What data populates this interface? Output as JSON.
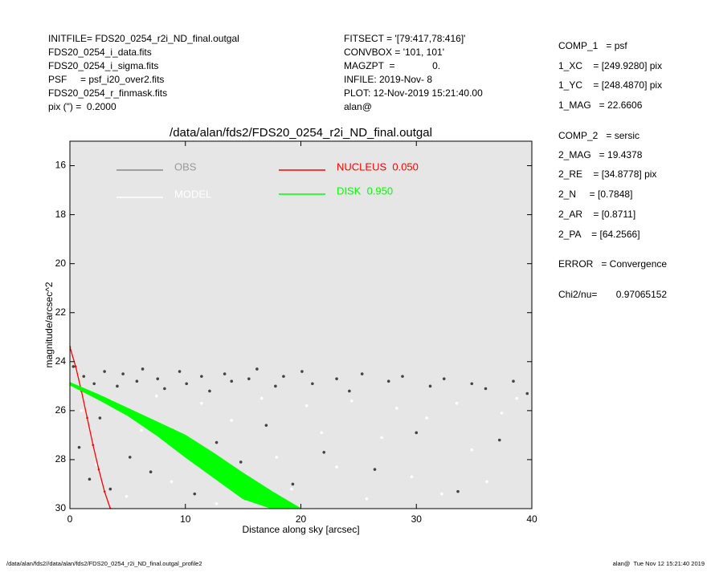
{
  "header_left": [
    "INITFILE= FDS20_0254_r2i_ND_final.outgal",
    "FDS20_0254_i_data.fits",
    "FDS20_0254_i_sigma.fits",
    "PSF     = psf_i20_over2.fits",
    "FDS20_0254_r_finmask.fits",
    "pix (\") =  0.2000"
  ],
  "header_mid": [
    "FITSECT = '[79:417,78:416]'",
    "CONVBOX = '101, 101'",
    "MAGZPT  =              0.",
    "INFILE: 2019-Nov- 8",
    "PLOT: 12-Nov-2019 15:21:40.00",
    "alan@"
  ],
  "params": [
    "COMP_1   = psf",
    "1_XC    = [249.9280] pix",
    "1_YC    = [248.4870] pix",
    "1_MAG   = 22.6606",
    "COMP_2   = sersic",
    "2_MAG   = 19.4378",
    "2_RE    = [34.8778] pix",
    "2_N     = [0.7848]",
    "2_AR    = [0.8711]",
    "2_PA    = [64.2566]",
    "ERROR   = Convergence",
    "Chi2/nu=       0.97065152"
  ],
  "footer_left": "/data/alan/fds2//data/alan/fds2/FDS20_0254_r2i_ND_final.outgal_profile2",
  "footer_right": "alan@  Tue Nov 12 15:21:40 2019",
  "chart_data": {
    "type": "scatter",
    "title": "/data/alan/fds2/FDS20_0254_r2i_ND_final.outgal",
    "xlabel": "Distance along sky [arcsec]",
    "ylabel": "magnitude/arcsec^2",
    "xlim": [
      0,
      40
    ],
    "ylim": [
      30,
      15
    ],
    "xticks": [
      0,
      10,
      20,
      30,
      40
    ],
    "yticks": [
      16,
      18,
      20,
      22,
      24,
      26,
      28,
      30
    ],
    "background": "#e6e6e6",
    "series": [
      {
        "name": "OBS",
        "color": "#444444",
        "kind": "points",
        "x": [
          0.3,
          0.8,
          1.2,
          1.7,
          2.1,
          2.6,
          3.0,
          3.5,
          4.1,
          4.6,
          5.2,
          5.8,
          6.3,
          7.0,
          7.6,
          8.2,
          8.9,
          9.5,
          10.1,
          10.8,
          11.4,
          12.1,
          12.7,
          13.4,
          14.0,
          14.8,
          15.5,
          16.2,
          17.0,
          17.8,
          18.5,
          19.3,
          20.1,
          21.0,
          22.0,
          23.1,
          24.2,
          25.3,
          26.4,
          27.6,
          28.8,
          30.0,
          31.2,
          32.4,
          33.6,
          34.8,
          36.0,
          37.2,
          38.4,
          39.6
        ],
        "values": [
          24.2,
          27.5,
          24.6,
          28.8,
          24.9,
          26.3,
          24.4,
          29.2,
          25.0,
          24.5,
          27.9,
          24.8,
          24.3,
          28.5,
          24.7,
          25.1,
          26.8,
          24.4,
          24.9,
          29.4,
          24.6,
          25.2,
          27.3,
          24.5,
          24.8,
          28.1,
          24.7,
          24.3,
          26.6,
          25.0,
          24.6,
          29.0,
          24.4,
          24.9,
          27.7,
          24.7,
          25.2,
          24.5,
          28.4,
          24.8,
          24.6,
          26.9,
          25.0,
          24.7,
          29.3,
          24.9,
          25.1,
          27.2,
          24.8,
          25.3
        ]
      },
      {
        "name": "MODEL",
        "color": "#ffffff",
        "kind": "points",
        "x": [
          1.0,
          2.3,
          3.6,
          4.9,
          6.2,
          7.5,
          8.8,
          10.1,
          11.4,
          12.7,
          14.0,
          15.3,
          16.6,
          17.9,
          19.2,
          20.5,
          21.8,
          23.1,
          24.4,
          25.7,
          27.0,
          28.3,
          29.6,
          30.9,
          32.2,
          33.5,
          34.8,
          36.1,
          37.4,
          38.7
        ],
        "values": [
          26.0,
          28.2,
          25.6,
          29.5,
          26.8,
          25.4,
          28.9,
          27.3,
          25.7,
          29.8,
          26.4,
          28.6,
          25.5,
          27.9,
          29.2,
          25.8,
          26.9,
          28.3,
          25.6,
          29.6,
          27.1,
          25.9,
          28.7,
          26.3,
          29.4,
          25.7,
          27.6,
          28.9,
          26.1,
          25.5
        ]
      },
      {
        "name": "NUCLEUS  0.050",
        "color": "#ff0000",
        "kind": "line",
        "x": [
          0,
          0.5,
          1,
          1.5,
          2,
          2.5,
          3,
          3.5
        ],
        "values": [
          23.4,
          24.2,
          25.2,
          26.3,
          27.4,
          28.4,
          29.3,
          30.0
        ]
      },
      {
        "name": "DISK  0.950",
        "color": "#00ff00",
        "kind": "band",
        "x": [
          0,
          2.5,
          5,
          7.5,
          10,
          12.5,
          15,
          17.5,
          20
        ],
        "values": [
          24.85,
          25.35,
          25.9,
          26.45,
          27.0,
          27.75,
          28.55,
          29.3,
          30.0
        ],
        "lower": [
          24.95,
          25.55,
          26.2,
          27.0,
          27.9,
          28.75,
          29.6,
          30.0,
          null
        ]
      }
    ]
  }
}
